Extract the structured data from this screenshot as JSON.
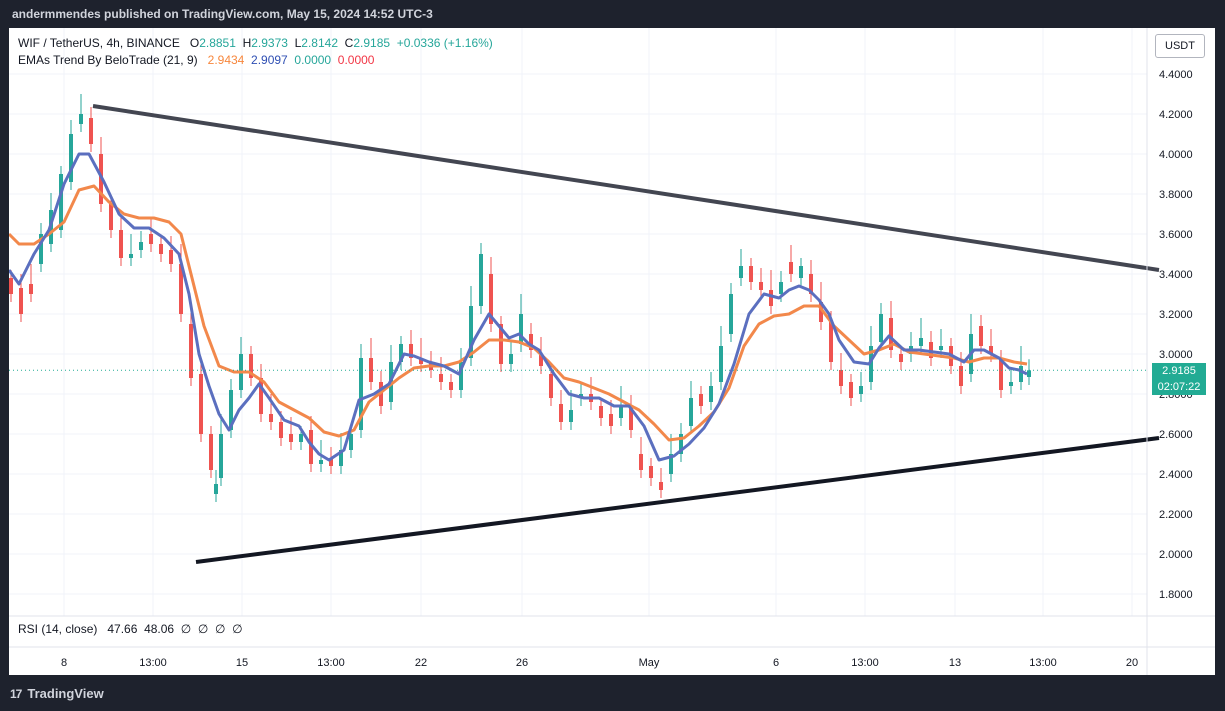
{
  "header": {
    "publisher_line": "andermmendes published on TradingView.com, May 15, 2024 14:52 UTC-3"
  },
  "legend": {
    "symbol": "WIF / TetherUS, 4h, BINANCE",
    "open_label": "O",
    "open": "2.8851",
    "high_label": "H",
    "high": "2.9373",
    "low_label": "L",
    "low": "2.8142",
    "close_label": "C",
    "close": "2.9185",
    "change": "+0.0336 (+1.16%)",
    "indicator": "EMAs Trend By BeloTrade (21, 9)",
    "ind_v1": "2.9434",
    "ind_v2": "2.9097",
    "ind_v3": "0.0000",
    "ind_v4": "0.0000"
  },
  "rsi_legend": {
    "label": "RSI (14, close)",
    "v1": "47.66",
    "v2": "48.06",
    "v3": "∅",
    "v4": "∅",
    "v5": "∅",
    "v6": "∅"
  },
  "currency_button": "USDT",
  "price_tag": {
    "price": "2.9185",
    "countdown": "02:07:22"
  },
  "footer": {
    "logo_mark": "17",
    "brand": "TradingView"
  },
  "colors": {
    "up": "#26a69a",
    "down": "#ef5350",
    "ema_fast": "#5b6fbf",
    "ema_slow": "#f2884b",
    "trendline_upper": "#434651",
    "trendline_lower": "#131722"
  },
  "chart_data": {
    "type": "candlestick",
    "symbol": "WIF / TetherUS",
    "timeframe": "4h",
    "y_ticks": [
      "4.4000",
      "4.2000",
      "4.0000",
      "3.8000",
      "3.6000",
      "3.4000",
      "3.2000",
      "3.0000",
      "2.8000",
      "2.6000",
      "2.4000",
      "2.2000",
      "2.0000",
      "1.8000"
    ],
    "ylim": [
      1.72,
      4.48
    ],
    "x_ticks": [
      "8",
      "13:00",
      "15",
      "13:00",
      "22",
      "26",
      "May",
      "6",
      "13:00",
      "13",
      "13:00",
      "20"
    ],
    "grid": true,
    "last_close": 2.9185,
    "ema_fast_path": [
      [
        0,
        3.42
      ],
      [
        10,
        3.35
      ],
      [
        25,
        3.5
      ],
      [
        40,
        3.62
      ],
      [
        55,
        3.85
      ],
      [
        70,
        4.0
      ],
      [
        80,
        4.0
      ],
      [
        95,
        3.86
      ],
      [
        110,
        3.7
      ],
      [
        125,
        3.63
      ],
      [
        140,
        3.63
      ],
      [
        155,
        3.58
      ],
      [
        170,
        3.5
      ],
      [
        180,
        3.3
      ],
      [
        190,
        3.0
      ],
      [
        200,
        2.84
      ],
      [
        210,
        2.7
      ],
      [
        220,
        2.62
      ],
      [
        230,
        2.72
      ],
      [
        240,
        2.78
      ],
      [
        250,
        2.85
      ],
      [
        260,
        2.78
      ],
      [
        275,
        2.67
      ],
      [
        290,
        2.64
      ],
      [
        300,
        2.56
      ],
      [
        310,
        2.5
      ],
      [
        320,
        2.47
      ],
      [
        335,
        2.52
      ],
      [
        350,
        2.77
      ],
      [
        365,
        2.8
      ],
      [
        380,
        2.85
      ],
      [
        395,
        3.0
      ],
      [
        405,
        2.99
      ],
      [
        420,
        2.96
      ],
      [
        435,
        2.94
      ],
      [
        450,
        2.9
      ],
      [
        465,
        3.07
      ],
      [
        480,
        3.2
      ],
      [
        490,
        3.14
      ],
      [
        500,
        3.08
      ],
      [
        510,
        3.1
      ],
      [
        520,
        3.05
      ],
      [
        530,
        3.02
      ],
      [
        545,
        2.9
      ],
      [
        560,
        2.8
      ],
      [
        575,
        2.78
      ],
      [
        590,
        2.78
      ],
      [
        605,
        2.74
      ],
      [
        620,
        2.74
      ],
      [
        635,
        2.64
      ],
      [
        650,
        2.47
      ],
      [
        665,
        2.49
      ],
      [
        680,
        2.55
      ],
      [
        695,
        2.63
      ],
      [
        710,
        2.75
      ],
      [
        725,
        2.95
      ],
      [
        740,
        3.2
      ],
      [
        755,
        3.3
      ],
      [
        770,
        3.28
      ],
      [
        780,
        3.32
      ],
      [
        790,
        3.34
      ],
      [
        800,
        3.32
      ],
      [
        810,
        3.27
      ],
      [
        820,
        3.2
      ],
      [
        830,
        3.07
      ],
      [
        845,
        2.96
      ],
      [
        860,
        2.95
      ],
      [
        870,
        3.03
      ],
      [
        880,
        3.09
      ],
      [
        895,
        3.02
      ],
      [
        910,
        3.02
      ],
      [
        925,
        3.01
      ],
      [
        940,
        3.0
      ],
      [
        955,
        2.96
      ],
      [
        965,
        3.02
      ],
      [
        975,
        3.02
      ],
      [
        990,
        2.98
      ],
      [
        1000,
        2.93
      ],
      [
        1010,
        2.92
      ],
      [
        1018,
        2.9
      ]
    ],
    "ema_slow_path": [
      [
        0,
        3.6
      ],
      [
        10,
        3.55
      ],
      [
        25,
        3.55
      ],
      [
        40,
        3.6
      ],
      [
        55,
        3.66
      ],
      [
        70,
        3.82
      ],
      [
        85,
        3.84
      ],
      [
        100,
        3.76
      ],
      [
        115,
        3.7
      ],
      [
        130,
        3.68
      ],
      [
        145,
        3.68
      ],
      [
        160,
        3.66
      ],
      [
        172,
        3.6
      ],
      [
        182,
        3.4
      ],
      [
        195,
        3.14
      ],
      [
        210,
        2.94
      ],
      [
        225,
        2.91
      ],
      [
        240,
        2.91
      ],
      [
        255,
        2.86
      ],
      [
        270,
        2.76
      ],
      [
        285,
        2.72
      ],
      [
        300,
        2.68
      ],
      [
        315,
        2.61
      ],
      [
        330,
        2.59
      ],
      [
        345,
        2.62
      ],
      [
        360,
        2.76
      ],
      [
        375,
        2.82
      ],
      [
        390,
        2.88
      ],
      [
        405,
        2.93
      ],
      [
        420,
        2.94
      ],
      [
        435,
        2.94
      ],
      [
        450,
        2.96
      ],
      [
        465,
        3.01
      ],
      [
        480,
        3.07
      ],
      [
        495,
        3.07
      ],
      [
        510,
        3.06
      ],
      [
        525,
        3.03
      ],
      [
        540,
        2.96
      ],
      [
        555,
        2.88
      ],
      [
        570,
        2.86
      ],
      [
        585,
        2.83
      ],
      [
        600,
        2.8
      ],
      [
        615,
        2.76
      ],
      [
        630,
        2.72
      ],
      [
        645,
        2.65
      ],
      [
        660,
        2.57
      ],
      [
        675,
        2.58
      ],
      [
        690,
        2.64
      ],
      [
        705,
        2.71
      ],
      [
        720,
        2.83
      ],
      [
        735,
        3.04
      ],
      [
        750,
        3.15
      ],
      [
        765,
        3.19
      ],
      [
        780,
        3.2
      ],
      [
        795,
        3.24
      ],
      [
        810,
        3.24
      ],
      [
        825,
        3.14
      ],
      [
        840,
        3.07
      ],
      [
        855,
        3.0
      ],
      [
        870,
        3.02
      ],
      [
        885,
        3.05
      ],
      [
        900,
        3.01
      ],
      [
        915,
        3.0
      ],
      [
        930,
        2.99
      ],
      [
        945,
        2.98
      ],
      [
        960,
        2.96
      ],
      [
        975,
        2.98
      ],
      [
        990,
        2.98
      ],
      [
        1005,
        2.96
      ],
      [
        1018,
        2.95
      ]
    ],
    "trendline_upper": [
      [
        84,
        4.24
      ],
      [
        1150,
        3.42
      ]
    ],
    "trendline_lower": [
      [
        187,
        1.96
      ],
      [
        1150,
        2.58
      ]
    ],
    "candles_min": [
      [
        0,
        3.38,
        3.3
      ],
      [
        10,
        3.33,
        3.2
      ],
      [
        20,
        3.35,
        3.3
      ],
      [
        30,
        3.45,
        3.6
      ],
      [
        40,
        3.55,
        3.72
      ],
      [
        50,
        3.62,
        3.9
      ],
      [
        60,
        3.86,
        4.1
      ],
      [
        70,
        4.15,
        4.2
      ],
      [
        80,
        4.18,
        4.05
      ],
      [
        90,
        4.0,
        3.75
      ],
      [
        100,
        3.75,
        3.62
      ],
      [
        110,
        3.62,
        3.48
      ],
      [
        120,
        3.48,
        3.5
      ],
      [
        130,
        3.52,
        3.56
      ],
      [
        140,
        3.6,
        3.55
      ],
      [
        150,
        3.55,
        3.5
      ],
      [
        160,
        3.52,
        3.45
      ],
      [
        170,
        3.45,
        3.2
      ],
      [
        180,
        3.15,
        2.88
      ],
      [
        190,
        2.9,
        2.6
      ],
      [
        200,
        2.6,
        2.42
      ],
      [
        205,
        2.3,
        2.35
      ],
      [
        210,
        2.38,
        2.6
      ],
      [
        220,
        2.62,
        2.82
      ],
      [
        230,
        2.82,
        3.0
      ],
      [
        240,
        3.0,
        2.88
      ],
      [
        250,
        2.88,
        2.7
      ],
      [
        260,
        2.7,
        2.66
      ],
      [
        270,
        2.66,
        2.58
      ],
      [
        280,
        2.6,
        2.56
      ],
      [
        290,
        2.56,
        2.6
      ],
      [
        300,
        2.62,
        2.45
      ],
      [
        310,
        2.45,
        2.47
      ],
      [
        320,
        2.48,
        2.44
      ],
      [
        330,
        2.44,
        2.52
      ],
      [
        340,
        2.52,
        2.6
      ],
      [
        350,
        2.62,
        2.98
      ],
      [
        360,
        2.98,
        2.86
      ],
      [
        370,
        2.86,
        2.74
      ],
      [
        380,
        2.76,
        2.96
      ],
      [
        390,
        2.96,
        3.05
      ],
      [
        400,
        3.05,
        2.98
      ],
      [
        410,
        2.98,
        2.95
      ],
      [
        420,
        2.96,
        2.92
      ],
      [
        430,
        2.9,
        2.86
      ],
      [
        440,
        2.86,
        2.82
      ],
      [
        450,
        2.82,
        2.96
      ],
      [
        460,
        2.98,
        3.24
      ],
      [
        470,
        3.24,
        3.5
      ],
      [
        480,
        3.4,
        3.15
      ],
      [
        490,
        3.15,
        2.95
      ],
      [
        500,
        2.95,
        3.0
      ],
      [
        510,
        3.05,
        3.2
      ],
      [
        520,
        3.1,
        3.02
      ],
      [
        530,
        3.0,
        2.94
      ],
      [
        540,
        2.9,
        2.78
      ],
      [
        550,
        2.75,
        2.66
      ],
      [
        560,
        2.66,
        2.72
      ],
      [
        570,
        2.78,
        2.8
      ],
      [
        580,
        2.8,
        2.76
      ],
      [
        590,
        2.74,
        2.68
      ],
      [
        600,
        2.7,
        2.64
      ],
      [
        610,
        2.68,
        2.74
      ],
      [
        620,
        2.74,
        2.62
      ],
      [
        630,
        2.5,
        2.42
      ],
      [
        640,
        2.44,
        2.38
      ],
      [
        650,
        2.36,
        2.32
      ],
      [
        660,
        2.4,
        2.5
      ],
      [
        670,
        2.5,
        2.6
      ],
      [
        680,
        2.64,
        2.78
      ],
      [
        690,
        2.8,
        2.74
      ],
      [
        700,
        2.76,
        2.84
      ],
      [
        710,
        2.86,
        3.04
      ],
      [
        720,
        3.1,
        3.3
      ],
      [
        730,
        3.38,
        3.44
      ],
      [
        740,
        3.44,
        3.36
      ],
      [
        750,
        3.36,
        3.32
      ],
      [
        760,
        3.32,
        3.24
      ],
      [
        770,
        3.3,
        3.36
      ],
      [
        780,
        3.46,
        3.4
      ],
      [
        790,
        3.38,
        3.44
      ],
      [
        800,
        3.4,
        3.3
      ],
      [
        810,
        3.26,
        3.16
      ],
      [
        820,
        3.16,
        2.96
      ],
      [
        830,
        2.92,
        2.84
      ],
      [
        840,
        2.86,
        2.78
      ],
      [
        850,
        2.8,
        2.84
      ],
      [
        860,
        2.86,
        3.04
      ],
      [
        870,
        3.06,
        3.2
      ],
      [
        880,
        3.18,
        3.02
      ],
      [
        890,
        3.0,
        2.96
      ],
      [
        900,
        3.0,
        3.04
      ],
      [
        910,
        3.04,
        3.08
      ],
      [
        920,
        3.06,
        2.98
      ],
      [
        930,
        3.02,
        3.04
      ],
      [
        940,
        3.04,
        2.94
      ],
      [
        950,
        2.94,
        2.84
      ],
      [
        960,
        2.9,
        3.1
      ],
      [
        970,
        3.14,
        3.04
      ],
      [
        980,
        3.04,
        3.0
      ],
      [
        990,
        2.98,
        2.82
      ],
      [
        1000,
        2.84,
        2.86
      ],
      [
        1010,
        2.86,
        2.94
      ],
      [
        1018,
        2.885,
        2.9185
      ]
    ]
  }
}
